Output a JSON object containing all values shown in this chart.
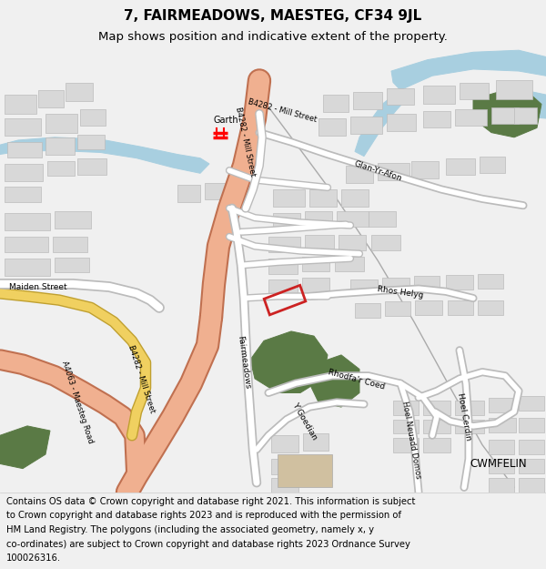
{
  "title_line1": "7, FAIRMEADOWS, MAESTEG, CF34 9JL",
  "title_line2": "Map shows position and indicative extent of the property.",
  "footer_lines": [
    "Contains OS data © Crown copyright and database right 2021. This information is subject",
    "to Crown copyright and database rights 2023 and is reproduced with the permission of",
    "HM Land Registry. The polygons (including the associated geometry, namely x, y",
    "co-ordinates) are subject to Crown copyright and database rights 2023 Ordnance Survey",
    "100026316."
  ],
  "bg": "#f0f0f0",
  "map_bg": "#f0f0f0",
  "water": "#a8cfe0",
  "green": "#5a7a45",
  "road_main_fill": "#f0b090",
  "road_main_edge": "#c07050",
  "road_sec_fill": "#ffffff",
  "road_sec_edge": "#bbbbbb",
  "road_yellow_fill": "#f0d060",
  "road_yellow_edge": "#c0a030",
  "building": "#d8d8d8",
  "building_edge": "#bbbbbb",
  "tan_building": "#d0c0a0",
  "property_color": "#cc2222",
  "label_color": "#333333"
}
